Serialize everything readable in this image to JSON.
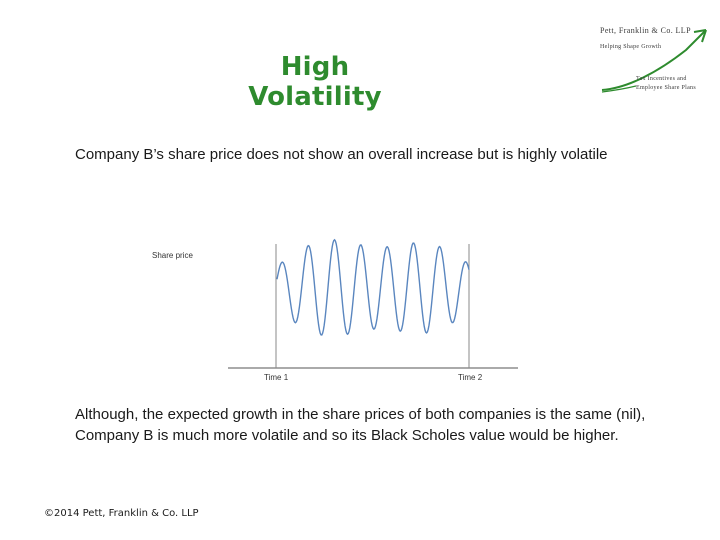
{
  "slide": {
    "title": "High Volatility",
    "intro": "Company B’s share price does not show an overall increase but is highly volatile",
    "conclusion": "Although, the expected growth in the share prices of both companies is the same (nil), Company B is much more volatile and so its Black Scholes value would be higher.",
    "footer": "©2014 Pett, Franklin & Co. LLP"
  },
  "logo": {
    "name": "Pett, Franklin & Co. LLP",
    "tagline": "Helping Shape Growth",
    "line3": "Tax Incentives and",
    "line4": "Employee Share Plans",
    "accent": "#2e8b2e"
  },
  "chart_data": {
    "type": "line",
    "title": "",
    "ylabel": "Share price",
    "x_ticks": [
      "Time 1",
      "Time 2"
    ],
    "color": "#5a86bf",
    "note": "Oscillating share price between Time 1 and Time 2 with no overall increase; amplitude largest in the middle."
  }
}
